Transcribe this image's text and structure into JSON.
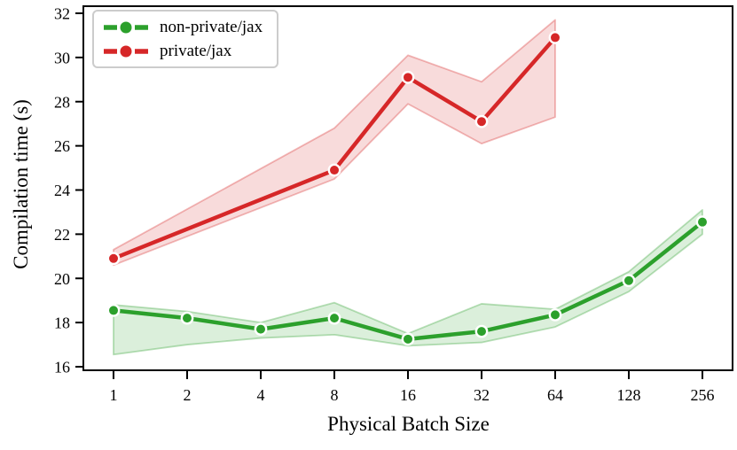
{
  "chart_data": {
    "type": "line",
    "title": "",
    "xlabel": "Physical Batch Size",
    "ylabel": "Compilation time (s)",
    "x_scale": "log2",
    "x_ticks": [
      1,
      2,
      4,
      8,
      16,
      32,
      64,
      128,
      256
    ],
    "y_ticks": [
      16,
      18,
      20,
      22,
      24,
      26,
      28,
      30,
      32
    ],
    "ylim": [
      15.84,
      32.32
    ],
    "grid": false,
    "legend_position": "upper left",
    "marker": "circle",
    "band_style": "shaded min-max band with light outline",
    "series": [
      {
        "name": "non-private/jax",
        "color": "#2ca02c",
        "x": [
          1,
          2,
          4,
          8,
          16,
          32,
          64,
          128,
          256
        ],
        "values": [
          18.55,
          18.2,
          17.7,
          18.2,
          17.25,
          17.6,
          18.35,
          19.9,
          22.55
        ],
        "band_low": [
          16.55,
          17.0,
          17.3,
          17.45,
          16.95,
          17.1,
          17.8,
          19.4,
          22.0
        ],
        "band_high": [
          18.8,
          18.5,
          18.0,
          18.9,
          17.5,
          18.85,
          18.6,
          20.3,
          23.1
        ]
      },
      {
        "name": "private/jax",
        "color": "#d62728",
        "x": [
          1,
          8,
          16,
          32,
          64
        ],
        "values": [
          20.9,
          24.9,
          29.1,
          27.1,
          30.9
        ],
        "band_low": [
          20.6,
          24.5,
          27.9,
          26.1,
          27.3
        ],
        "band_high": [
          21.3,
          26.8,
          30.1,
          28.9,
          31.7
        ]
      }
    ]
  },
  "style_colors": {
    "axis": "#000000",
    "legend_border": "#cccccc",
    "background": "#ffffff"
  }
}
